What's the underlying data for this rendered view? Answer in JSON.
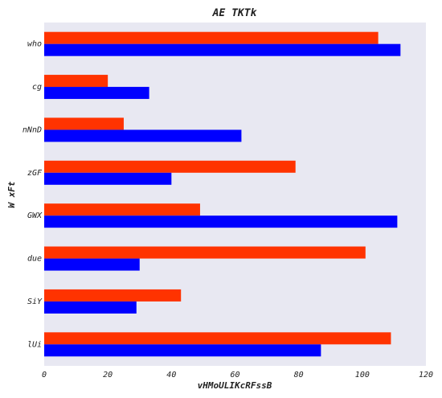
{
  "chart_data": {
    "type": "bar",
    "orientation": "horizontal",
    "title": "AE TKTk",
    "xlabel": "vHMoULIKcRFssB",
    "ylabel": "W  xFt",
    "categories": [
      "who",
      "cg",
      "nNnD",
      "zGF",
      "GWX",
      "due",
      "SiY",
      "lUi"
    ],
    "series": [
      {
        "color": "#ff3300",
        "values": [
          105,
          20,
          25,
          79,
          49,
          101,
          43,
          109
        ]
      },
      {
        "color": "#0000ff",
        "values": [
          112,
          33,
          62,
          40,
          111,
          30,
          29,
          87
        ]
      }
    ],
    "xlim": [
      0,
      120
    ],
    "xticks": [
      0,
      20,
      40,
      60,
      80,
      100,
      120
    ],
    "grid": false,
    "legend": "none",
    "plot_background": "#e8e8f2"
  }
}
